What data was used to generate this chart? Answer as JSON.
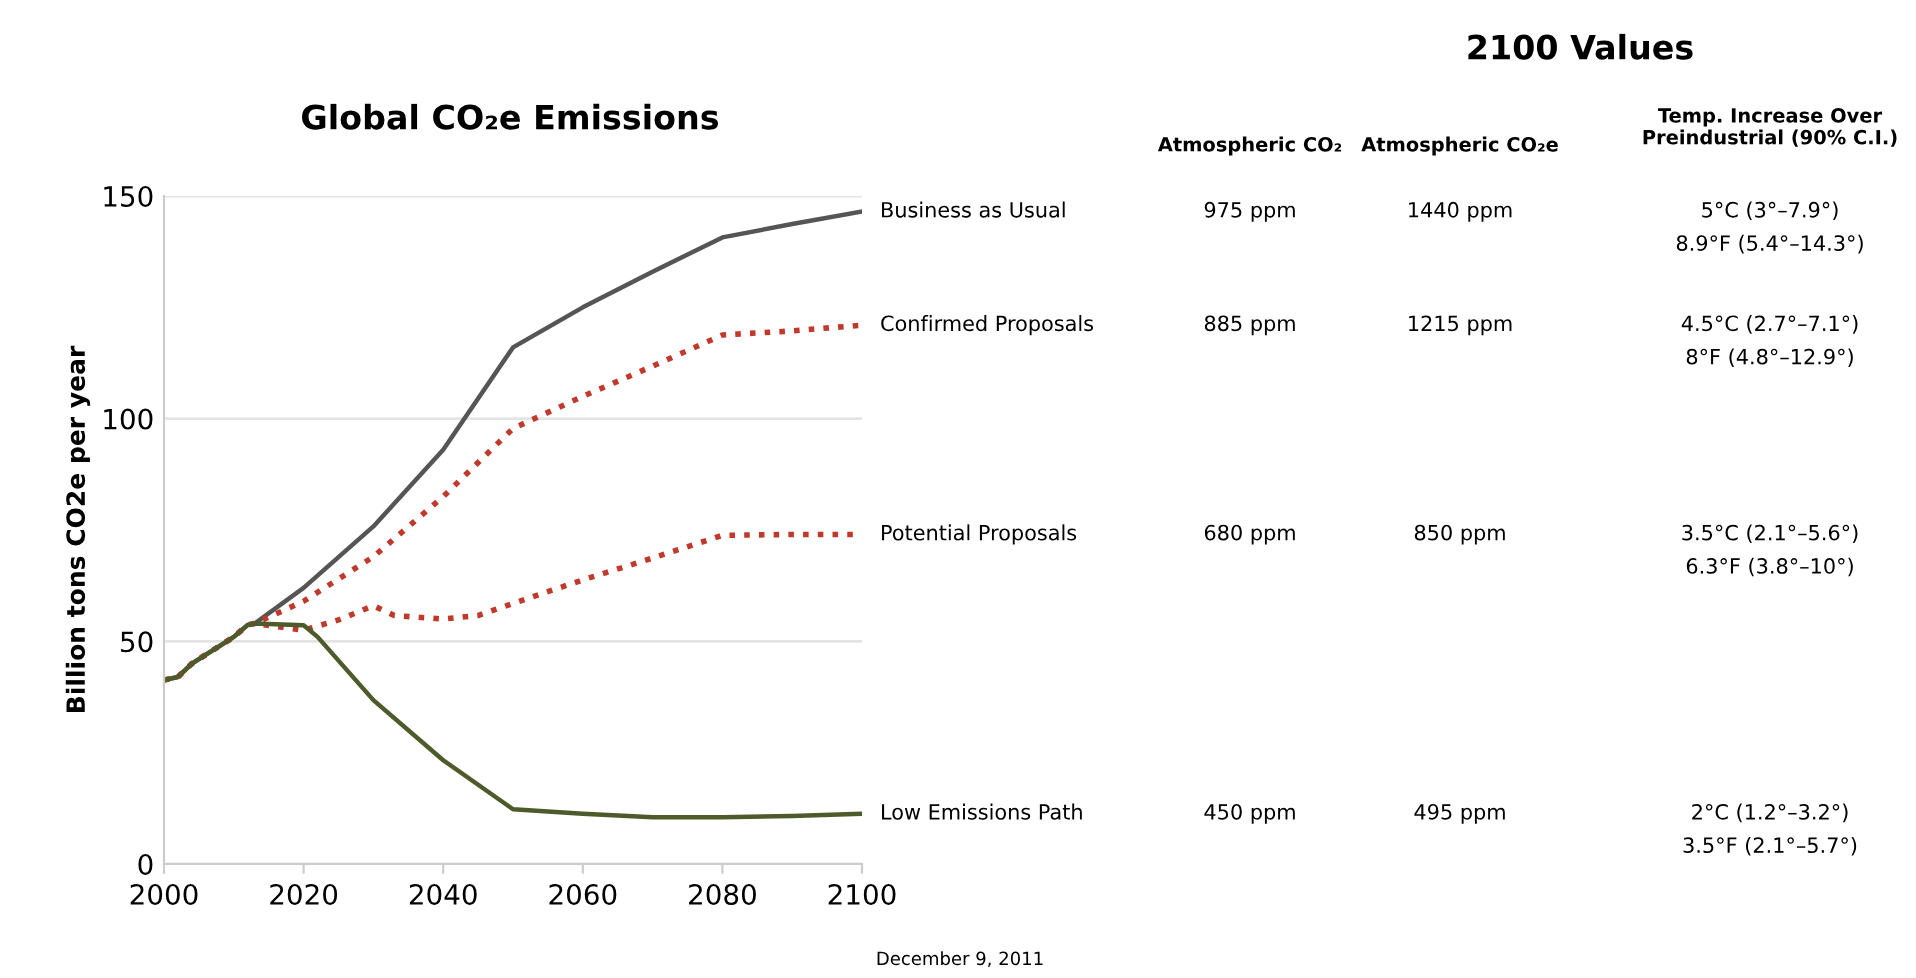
{
  "chart_data": {
    "type": "line",
    "title": "Global CO₂e Emissions",
    "ylabel": "Billion tons CO2e per year",
    "xlim": [
      2000,
      2100
    ],
    "xticks": [
      2000,
      2020,
      2040,
      2060,
      2080,
      2100
    ],
    "ylim": [
      0,
      150
    ],
    "yticks": [
      0,
      50,
      100,
      150
    ],
    "grid": "y",
    "legend": false,
    "series": [
      {
        "name": "Business as Usual",
        "color": "#555555",
        "line_style": "solid",
        "x": [
          2000,
          2002,
          2004,
          2006,
          2008,
          2010,
          2012,
          2013,
          2020,
          2030,
          2040,
          2050,
          2060,
          2070,
          2080,
          2090,
          2100
        ],
        "values": [
          41.3,
          42,
          45,
          47,
          49,
          51,
          53.7,
          54,
          62,
          75.8,
          93,
          116,
          125,
          133,
          140.7,
          143.7,
          146.5
        ]
      },
      {
        "name": "Confirmed Proposals",
        "color": "#c0392b",
        "line_style": "dotted",
        "x": [
          2000,
          2002,
          2004,
          2006,
          2008,
          2010,
          2012,
          2013,
          2020,
          2030,
          2040,
          2050,
          2060,
          2070,
          2080,
          2090,
          2100
        ],
        "values": [
          41.3,
          42,
          45,
          47,
          49,
          51,
          53.7,
          54,
          59,
          69,
          82.5,
          97.8,
          105,
          111.8,
          118.8,
          119.7,
          121
        ]
      },
      {
        "name": "Potential Proposals",
        "color": "#c0392b",
        "line_style": "dotted",
        "x": [
          2000,
          2002,
          2004,
          2006,
          2008,
          2010,
          2012,
          2013,
          2020,
          2025,
          2030,
          2033,
          2040,
          2045,
          2050,
          2060,
          2070,
          2080,
          2090,
          2100
        ],
        "values": [
          41.3,
          42,
          45,
          47,
          49,
          51,
          53.7,
          54,
          52.5,
          54.8,
          58,
          55.8,
          55,
          55.8,
          58.5,
          63.8,
          68.7,
          73.8,
          74,
          74
        ]
      },
      {
        "name": "Low Emissions Path",
        "color": "#4d5a2a",
        "line_style": "solid",
        "x": [
          2000,
          2002,
          2004,
          2006,
          2008,
          2010,
          2012,
          2013,
          2020,
          2022,
          2030,
          2040,
          2050,
          2060,
          2070,
          2080,
          2090,
          2100
        ],
        "values": [
          41.3,
          42,
          45,
          47,
          49,
          51,
          53.7,
          54,
          53.6,
          51,
          36.8,
          23.3,
          12.3,
          11.3,
          10.5,
          10.5,
          10.8,
          11.3
        ]
      }
    ],
    "annotations": [
      "2100 Values",
      "Atmospheric CO₂",
      "Atmospheric CO₂e",
      "Temp. Increase Over\nPreindustrial (90% C.I.)",
      "975 ppm",
      "1440 ppm",
      "5°C (3°–7.9°)",
      "8.9°F (5.4°–14.3°)",
      "885 ppm",
      "1215 ppm",
      "4.5°C (2.7°–7.1°)",
      "8°F (4.8°–12.9°)",
      "680 ppm",
      "850 ppm",
      "3.5°C (2.1°–5.6°)",
      "6.3°F (3.8°–10°)",
      "450 ppm",
      "495 ppm",
      "2°C (1.2°–3.2°)",
      "3.5°F (2.1°–5.7°)",
      "December 9, 2011"
    ]
  }
}
